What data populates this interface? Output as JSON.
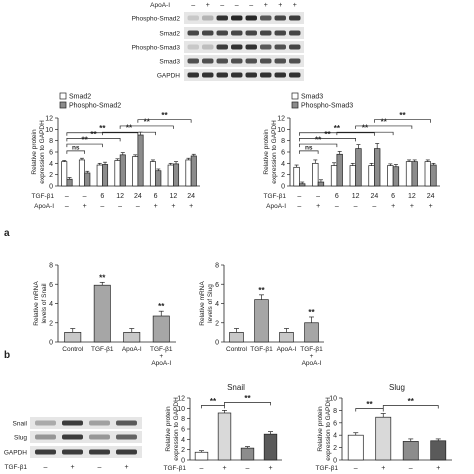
{
  "panel_labels": {
    "a": "a",
    "b": "b"
  },
  "western_top": {
    "apoa_label": "ApoA-I",
    "apoa_signs": [
      "–",
      "+",
      "–",
      "–",
      "–",
      "+",
      "+",
      "+"
    ],
    "rows": [
      "Phospho-Smad2",
      "Smad2",
      "Phospho-Smad3",
      "Smad3",
      "GAPDH"
    ]
  },
  "western_bottom": {
    "rows": [
      "Snail",
      "Slug",
      "GAPDH"
    ],
    "tgf_label": "TGF-β1",
    "tgf_signs": [
      "–",
      "+",
      "–",
      "+"
    ]
  },
  "colors": {
    "white_bar": "#ffffff",
    "gray_bar": "#8c8c8c",
    "light_bar": "#d9d9d9",
    "dark_bar": "#5a5a5a",
    "axis": "#222222"
  },
  "chart_data": [
    {
      "type": "bar",
      "ylabel": "Relative protein\nexpression to GAPDH",
      "ylim": [
        0,
        12
      ],
      "yticks": [
        0,
        2,
        4,
        6,
        8,
        10,
        12
      ],
      "categories": [
        "",
        "",
        "6",
        "12",
        "24",
        "6",
        "12",
        "24"
      ],
      "row_labels": [
        {
          "label": "TGF-β1",
          "signs": [
            "–",
            "–",
            "6",
            "12",
            "24",
            "6",
            "12",
            "24"
          ]
        },
        {
          "label": "ApoA-I",
          "signs": [
            "–",
            "+",
            "–",
            "–",
            "–",
            "+",
            "+",
            "+"
          ]
        }
      ],
      "legend_position": "top-left",
      "series": [
        {
          "name": "Smad2",
          "color": "#ffffff",
          "values": [
            4.3,
            4.6,
            3.7,
            4.5,
            5.2,
            4.3,
            3.7,
            4.6
          ],
          "errors": [
            0.2,
            0.3,
            0.3,
            0.3,
            0.3,
            0.3,
            0.3,
            0.3
          ]
        },
        {
          "name": "Phospho-Smad2",
          "color": "#8c8c8c",
          "values": [
            1.2,
            2.3,
            3.8,
            5.5,
            9.0,
            2.7,
            3.9,
            5.3
          ],
          "errors": [
            0.3,
            0.3,
            0.4,
            0.4,
            0.5,
            0.3,
            0.4,
            0.3
          ]
        }
      ],
      "significance": [
        {
          "from": 0,
          "to": 1,
          "label": "ns"
        },
        {
          "from": 0,
          "to": 2,
          "label": "**"
        },
        {
          "from": 0,
          "to": 3,
          "label": "**"
        },
        {
          "from": 0,
          "to": 4,
          "label": "**"
        },
        {
          "from": 2,
          "to": 5,
          "label": "**"
        },
        {
          "from": 3,
          "to": 6,
          "label": "**"
        },
        {
          "from": 4,
          "to": 7,
          "label": "**"
        }
      ]
    },
    {
      "type": "bar",
      "ylabel": "Relative protein\nexpression to GAPDH",
      "ylim": [
        0,
        12
      ],
      "yticks": [
        0,
        2,
        4,
        6,
        8,
        10,
        12
      ],
      "categories": [
        "",
        "",
        "6",
        "12",
        "24",
        "6",
        "12",
        "24"
      ],
      "row_labels": [
        {
          "label": "TGF-β1",
          "signs": [
            "–",
            "–",
            "6",
            "12",
            "24",
            "6",
            "12",
            "24"
          ]
        },
        {
          "label": "ApoA-I",
          "signs": [
            "–",
            "+",
            "–",
            "–",
            "–",
            "+",
            "+",
            "+"
          ]
        }
      ],
      "legend_position": "top-left",
      "series": [
        {
          "name": "Smad3",
          "color": "#ffffff",
          "values": [
            3.3,
            4.0,
            3.6,
            3.6,
            3.6,
            3.6,
            4.3,
            4.3
          ],
          "errors": [
            0.4,
            0.6,
            0.5,
            0.4,
            0.4,
            0.3,
            0.3,
            0.3
          ]
        },
        {
          "name": "Phospho-Smad3",
          "color": "#8c8c8c",
          "values": [
            0.4,
            0.7,
            5.6,
            6.6,
            6.6,
            3.4,
            4.3,
            3.7
          ],
          "errors": [
            0.3,
            0.4,
            0.5,
            0.7,
            0.9,
            0.4,
            0.3,
            0.3
          ]
        }
      ],
      "significance": [
        {
          "from": 0,
          "to": 1,
          "label": "ns"
        },
        {
          "from": 0,
          "to": 2,
          "label": "**"
        },
        {
          "from": 0,
          "to": 3,
          "label": "**"
        },
        {
          "from": 0,
          "to": 4,
          "label": "**"
        },
        {
          "from": 2,
          "to": 5,
          "label": "**"
        },
        {
          "from": 3,
          "to": 6,
          "label": "**"
        },
        {
          "from": 4,
          "to": 7,
          "label": "**"
        }
      ]
    },
    {
      "type": "bar",
      "ylabel": "Relative mRNA\nlevels of Snail",
      "ylim": [
        0,
        8
      ],
      "yticks": [
        0,
        2,
        4,
        6,
        8
      ],
      "categories": [
        "Control",
        "TGF-β1",
        "ApoA-I",
        "TGF-β1\n+\nApoA-I"
      ],
      "values": [
        1.0,
        5.9,
        1.0,
        2.7
      ],
      "errors": [
        0.4,
        0.3,
        0.4,
        0.5
      ],
      "stars": [
        "",
        "**",
        "",
        "**"
      ]
    },
    {
      "type": "bar",
      "ylabel": "Relative mRNA\nlevels of Slug",
      "ylim": [
        0,
        8
      ],
      "yticks": [
        0,
        2,
        4,
        6,
        8
      ],
      "categories": [
        "Control",
        "TGF-β1",
        "ApoA-I",
        "TGF-β1\n+\nApoA-I"
      ],
      "values": [
        1.0,
        4.4,
        1.0,
        2.0
      ],
      "errors": [
        0.4,
        0.5,
        0.4,
        0.6
      ],
      "stars": [
        "",
        "**",
        "",
        "**"
      ]
    },
    {
      "type": "bar",
      "title": "Snail",
      "ylabel": "Relative protein\nexpression to GAPDH",
      "ylim": [
        0,
        12
      ],
      "yticks": [
        0,
        2,
        4,
        6,
        8,
        10,
        12
      ],
      "categories": [
        "",
        "",
        "",
        ""
      ],
      "values": [
        1.5,
        9.1,
        2.3,
        5.0
      ],
      "errors": [
        0.3,
        0.5,
        0.3,
        0.5
      ],
      "bar_colors": [
        "#ffffff",
        "#d9d9d9",
        "#8c8c8c",
        "#5a5a5a"
      ],
      "significance": [
        {
          "from": 0,
          "to": 1,
          "label": "**"
        },
        {
          "from": 1,
          "to": 3,
          "label": "**"
        }
      ]
    },
    {
      "type": "bar",
      "title": "Slug",
      "ylabel": "Relative protein\nexpression to GAPDH",
      "ylim": [
        0,
        10
      ],
      "yticks": [
        0,
        2,
        4,
        6,
        8,
        10
      ],
      "categories": [
        "",
        "",
        "",
        ""
      ],
      "values": [
        4.0,
        6.9,
        3.0,
        3.1
      ],
      "errors": [
        0.4,
        0.6,
        0.4,
        0.3
      ],
      "bar_colors": [
        "#ffffff",
        "#d9d9d9",
        "#8c8c8c",
        "#5a5a5a"
      ],
      "significance": [
        {
          "from": 0,
          "to": 1,
          "label": "**"
        },
        {
          "from": 1,
          "to": 3,
          "label": "**"
        }
      ]
    }
  ]
}
